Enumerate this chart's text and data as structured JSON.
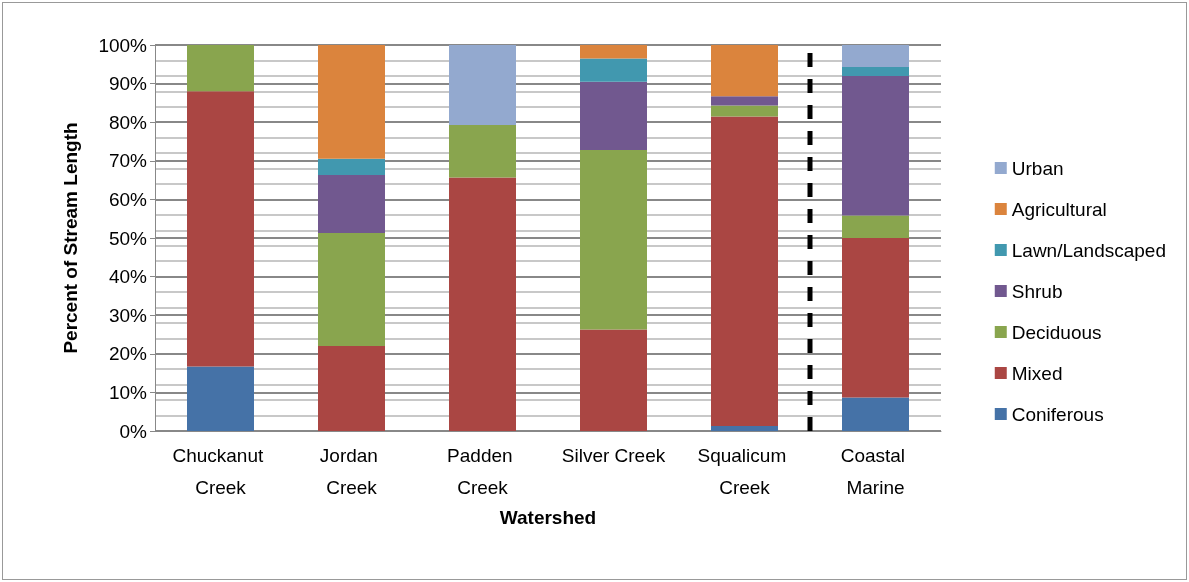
{
  "chart_data": {
    "type": "bar",
    "stacked": true,
    "xlabel": "Watershed",
    "ylabel": "Percent of Stream Length",
    "categories": [
      "Chuckanut Creek",
      "Jordan Creek",
      "Padden Creek",
      "Silver Creek",
      "Squalicum Creek",
      "Coastal Marine"
    ],
    "series": [
      {
        "name": "Coniferous",
        "color": "#4572a7",
        "values": [
          16.7,
          0,
          0,
          0,
          1.3,
          8.7
        ]
      },
      {
        "name": "Mixed",
        "color": "#aa4643",
        "values": [
          71.3,
          22,
          65.7,
          26.3,
          80.2,
          41.3
        ]
      },
      {
        "name": "Deciduous",
        "color": "#89a54e",
        "values": [
          12,
          29.3,
          13.6,
          46.5,
          2.8,
          5.8
        ]
      },
      {
        "name": "Shrub",
        "color": "#71588f",
        "values": [
          0,
          15,
          0,
          17.7,
          2.4,
          36.2
        ]
      },
      {
        "name": "Lawn/Landscaped",
        "color": "#4198af",
        "values": [
          0,
          4.2,
          0,
          6,
          0,
          2.3
        ]
      },
      {
        "name": "Agricultural",
        "color": "#db843d",
        "values": [
          0,
          29.5,
          0,
          3.5,
          13.3,
          0
        ]
      },
      {
        "name": "Urban",
        "color": "#93a9cf",
        "values": [
          0,
          0,
          20.7,
          0,
          0,
          5.7
        ]
      }
    ],
    "ylim": [
      0,
      100
    ],
    "yticks": [
      {
        "value": 0,
        "label": "0%"
      },
      {
        "value": 10,
        "label": "10%"
      },
      {
        "value": 20,
        "label": "20%"
      },
      {
        "value": 30,
        "label": "30%"
      },
      {
        "value": 40,
        "label": "40%"
      },
      {
        "value": 50,
        "label": "50%"
      },
      {
        "value": 60,
        "label": "60%"
      },
      {
        "value": 70,
        "label": "70%"
      },
      {
        "value": 80,
        "label": "80%"
      },
      {
        "value": 90,
        "label": "90%"
      },
      {
        "value": 100,
        "label": "100%"
      }
    ],
    "grid": "y",
    "legend": "right",
    "ref_lines": [
      {
        "axis": "x",
        "value": "Coastal Marine",
        "color": "#000000",
        "line_style": "dashed"
      }
    ]
  }
}
